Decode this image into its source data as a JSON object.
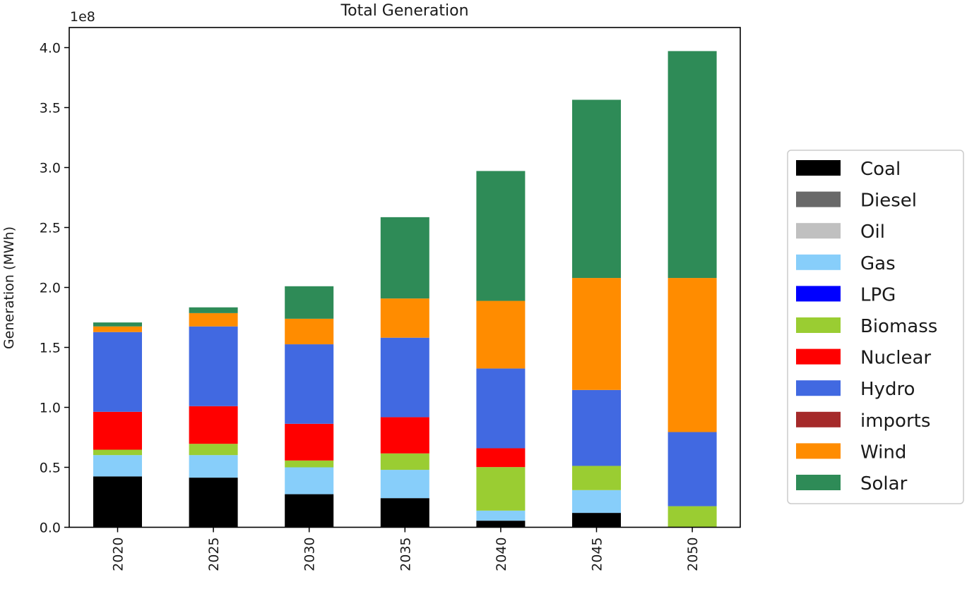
{
  "chart_data": {
    "type": "bar",
    "stacked": true,
    "title": "Total Generation",
    "xlabel": "",
    "ylabel": "Generation (MWh)",
    "y_offset_label": "1e8",
    "y_scale": 100000000,
    "ylim": [
      0,
      4.17
    ],
    "yticks": [
      0.0,
      0.5,
      1.0,
      1.5,
      2.0,
      2.5,
      3.0,
      3.5,
      4.0
    ],
    "ytick_labels": [
      "0.0",
      "0.5",
      "1.0",
      "1.5",
      "2.0",
      "2.5",
      "3.0",
      "3.5",
      "4.0"
    ],
    "categories": [
      "2020",
      "2025",
      "2030",
      "2035",
      "2040",
      "2045",
      "2050"
    ],
    "grid": false,
    "legend_position": "right-outside",
    "series": [
      {
        "name": "Coal",
        "color": "#000000",
        "values": [
          0.424,
          0.414,
          0.276,
          0.243,
          0.055,
          0.12,
          0.0
        ]
      },
      {
        "name": "Diesel",
        "color": "#696969",
        "values": [
          0,
          0,
          0,
          0,
          0,
          0,
          0
        ]
      },
      {
        "name": "Oil",
        "color": "#c0c0c0",
        "values": [
          0,
          0,
          0,
          0,
          0,
          0,
          0
        ]
      },
      {
        "name": "Gas",
        "color": "#87cefa",
        "values": [
          0.178,
          0.188,
          0.224,
          0.236,
          0.084,
          0.19,
          0.0
        ]
      },
      {
        "name": "LPG",
        "color": "#0000ff",
        "values": [
          0,
          0,
          0,
          0,
          0,
          0,
          0
        ]
      },
      {
        "name": "Biomass",
        "color": "#9acd32",
        "values": [
          0.045,
          0.094,
          0.057,
          0.137,
          0.363,
          0.202,
          0.176
        ]
      },
      {
        "name": "Nuclear",
        "color": "#ff0000",
        "values": [
          0.316,
          0.314,
          0.306,
          0.302,
          0.157,
          0.0,
          0.0
        ]
      },
      {
        "name": "Hydro",
        "color": "#4169e1",
        "values": [
          0.665,
          0.665,
          0.663,
          0.663,
          0.665,
          0.633,
          0.618
        ]
      },
      {
        "name": "imports",
        "color": "#a52a2a",
        "values": [
          0,
          0,
          0,
          0,
          0,
          0,
          0
        ]
      },
      {
        "name": "Wind",
        "color": "#ff8c00",
        "values": [
          0.047,
          0.111,
          0.213,
          0.327,
          0.564,
          0.934,
          1.285
        ]
      },
      {
        "name": "Solar",
        "color": "#2e8b57",
        "values": [
          0.033,
          0.048,
          0.271,
          0.678,
          1.083,
          1.486,
          1.892
        ]
      }
    ]
  }
}
